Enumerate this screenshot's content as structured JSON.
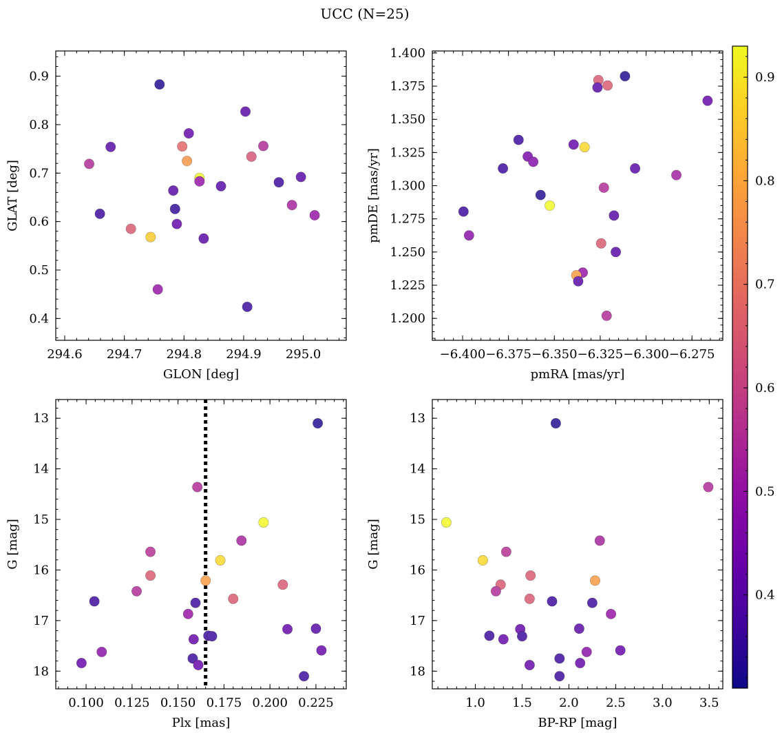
{
  "title": "UCC (N=25)",
  "colorbar": {
    "cmap": "plasma",
    "range": [
      0.31,
      0.93
    ],
    "ticks": [
      "0.4",
      "0.5",
      "0.6",
      "0.7",
      "0.8",
      "0.9"
    ],
    "tick_values": [
      0.4,
      0.5,
      0.6,
      0.7,
      0.8,
      0.9
    ]
  },
  "chart_data": [
    {
      "type": "scatter",
      "xlabel": "GLON [deg]",
      "ylabel": "GLAT [deg]",
      "xlim": [
        294.585,
        295.072
      ],
      "ylim": [
        0.355,
        0.952
      ],
      "invert_y": false,
      "xticks": [
        294.6,
        294.7,
        294.8,
        294.9,
        295.0
      ],
      "xticklabels": [
        "294.6",
        "294.7",
        "294.8",
        "294.9",
        "295.0"
      ],
      "yticks": [
        0.4,
        0.5,
        0.6,
        0.7,
        0.8,
        0.9
      ],
      "yticklabels": [
        "0.4",
        "0.5",
        "0.6",
        "0.7",
        "0.8",
        "0.9"
      ],
      "points": [
        {
          "x": 294.759,
          "y": 0.883,
          "c": 0.33
        },
        {
          "x": 294.903,
          "y": 0.827,
          "c": 0.4
        },
        {
          "x": 294.808,
          "y": 0.782,
          "c": 0.42
        },
        {
          "x": 294.677,
          "y": 0.754,
          "c": 0.4
        },
        {
          "x": 294.641,
          "y": 0.719,
          "c": 0.55
        },
        {
          "x": 294.797,
          "y": 0.755,
          "c": 0.68
        },
        {
          "x": 294.805,
          "y": 0.725,
          "c": 0.77
        },
        {
          "x": 294.933,
          "y": 0.756,
          "c": 0.55
        },
        {
          "x": 294.913,
          "y": 0.734,
          "c": 0.64
        },
        {
          "x": 294.826,
          "y": 0.69,
          "c": 0.93
        },
        {
          "x": 294.826,
          "y": 0.683,
          "c": 0.5
        },
        {
          "x": 294.862,
          "y": 0.673,
          "c": 0.4
        },
        {
          "x": 294.959,
          "y": 0.681,
          "c": 0.36
        },
        {
          "x": 294.996,
          "y": 0.692,
          "c": 0.4
        },
        {
          "x": 294.782,
          "y": 0.664,
          "c": 0.4
        },
        {
          "x": 294.785,
          "y": 0.626,
          "c": 0.35
        },
        {
          "x": 294.659,
          "y": 0.616,
          "c": 0.36
        },
        {
          "x": 294.981,
          "y": 0.634,
          "c": 0.53
        },
        {
          "x": 295.019,
          "y": 0.613,
          "c": 0.5
        },
        {
          "x": 294.788,
          "y": 0.595,
          "c": 0.42
        },
        {
          "x": 294.711,
          "y": 0.585,
          "c": 0.65
        },
        {
          "x": 294.744,
          "y": 0.568,
          "c": 0.86
        },
        {
          "x": 294.833,
          "y": 0.565,
          "c": 0.4
        },
        {
          "x": 294.756,
          "y": 0.46,
          "c": 0.5
        },
        {
          "x": 294.906,
          "y": 0.424,
          "c": 0.36
        }
      ]
    },
    {
      "type": "scatter",
      "xlabel": "pmRA [mas/yr]",
      "ylabel": "pmDE [mas/yr]",
      "xlim": [
        -6.4165,
        -6.2582
      ],
      "ylim": [
        1.1835,
        1.4015
      ],
      "invert_y": false,
      "xticks": [
        -6.4,
        -6.375,
        -6.35,
        -6.325,
        -6.3,
        -6.275
      ],
      "xticklabels": [
        "−6.400",
        "−6.375",
        "−6.350",
        "−6.325",
        "−6.300",
        "−6.275"
      ],
      "yticks": [
        1.2,
        1.225,
        1.25,
        1.275,
        1.3,
        1.325,
        1.35,
        1.375,
        1.4
      ],
      "yticklabels": [
        "1.200",
        "1.225",
        "1.250",
        "1.275",
        "1.300",
        "1.325",
        "1.350",
        "1.375",
        "1.400"
      ],
      "points": [
        {
          "x": -6.3115,
          "y": 1.3825,
          "c": 0.33
        },
        {
          "x": -6.326,
          "y": 1.3795,
          "c": 0.65
        },
        {
          "x": -6.321,
          "y": 1.3755,
          "c": 0.65
        },
        {
          "x": -6.3265,
          "y": 1.374,
          "c": 0.4
        },
        {
          "x": -6.2665,
          "y": 1.364,
          "c": 0.42
        },
        {
          "x": -6.3695,
          "y": 1.3345,
          "c": 0.36
        },
        {
          "x": -6.3395,
          "y": 1.331,
          "c": 0.42
        },
        {
          "x": -6.3335,
          "y": 1.329,
          "c": 0.88
        },
        {
          "x": -6.3645,
          "y": 1.322,
          "c": 0.45
        },
        {
          "x": -6.3615,
          "y": 1.318,
          "c": 0.47
        },
        {
          "x": -6.378,
          "y": 1.313,
          "c": 0.36
        },
        {
          "x": -6.306,
          "y": 1.313,
          "c": 0.4
        },
        {
          "x": -6.2835,
          "y": 1.308,
          "c": 0.52
        },
        {
          "x": -6.323,
          "y": 1.2985,
          "c": 0.55
        },
        {
          "x": -6.3575,
          "y": 1.293,
          "c": 0.33
        },
        {
          "x": -6.3525,
          "y": 1.285,
          "c": 0.93
        },
        {
          "x": -6.3995,
          "y": 1.2805,
          "c": 0.36
        },
        {
          "x": -6.3175,
          "y": 1.2775,
          "c": 0.4
        },
        {
          "x": -6.3965,
          "y": 1.2625,
          "c": 0.48
        },
        {
          "x": -6.3245,
          "y": 1.2565,
          "c": 0.65
        },
        {
          "x": -6.3165,
          "y": 1.25,
          "c": 0.4
        },
        {
          "x": -6.3345,
          "y": 1.2345,
          "c": 0.5
        },
        {
          "x": -6.338,
          "y": 1.2325,
          "c": 0.78
        },
        {
          "x": -6.337,
          "y": 1.228,
          "c": 0.4
        },
        {
          "x": -6.3215,
          "y": 1.202,
          "c": 0.55
        }
      ]
    },
    {
      "type": "scatter",
      "xlabel": "Plx [mas]",
      "ylabel": "G [mag]",
      "xlim": [
        0.0835,
        0.2415
      ],
      "ylim": [
        12.63,
        18.35
      ],
      "invert_y": true,
      "vline": 0.165,
      "xticks": [
        0.1,
        0.125,
        0.15,
        0.175,
        0.2,
        0.225
      ],
      "xticklabels": [
        "0.100",
        "0.125",
        "0.150",
        "0.175",
        "0.200",
        "0.225"
      ],
      "yticks": [
        13,
        14,
        15,
        16,
        17,
        18
      ],
      "yticklabels": [
        "13",
        "14",
        "15",
        "16",
        "17",
        "18"
      ],
      "points": [
        {
          "x": 0.226,
          "y": 13.1,
          "c": 0.33
        },
        {
          "x": 0.1605,
          "y": 14.36,
          "c": 0.55
        },
        {
          "x": 0.1965,
          "y": 15.06,
          "c": 0.93
        },
        {
          "x": 0.1845,
          "y": 15.42,
          "c": 0.53
        },
        {
          "x": 0.135,
          "y": 15.64,
          "c": 0.56
        },
        {
          "x": 0.173,
          "y": 15.81,
          "c": 0.88
        },
        {
          "x": 0.135,
          "y": 16.11,
          "c": 0.65
        },
        {
          "x": 0.165,
          "y": 16.21,
          "c": 0.78
        },
        {
          "x": 0.207,
          "y": 16.29,
          "c": 0.65
        },
        {
          "x": 0.1275,
          "y": 16.42,
          "c": 0.55
        },
        {
          "x": 0.18,
          "y": 16.57,
          "c": 0.65
        },
        {
          "x": 0.1045,
          "y": 16.62,
          "c": 0.36
        },
        {
          "x": 0.1595,
          "y": 16.65,
          "c": 0.36
        },
        {
          "x": 0.1555,
          "y": 16.87,
          "c": 0.5
        },
        {
          "x": 0.2095,
          "y": 17.17,
          "c": 0.42
        },
        {
          "x": 0.225,
          "y": 17.16,
          "c": 0.4
        },
        {
          "x": 0.1665,
          "y": 17.3,
          "c": 0.36
        },
        {
          "x": 0.1685,
          "y": 17.31,
          "c": 0.36
        },
        {
          "x": 0.1585,
          "y": 17.37,
          "c": 0.42
        },
        {
          "x": 0.228,
          "y": 17.59,
          "c": 0.42
        },
        {
          "x": 0.1085,
          "y": 17.62,
          "c": 0.48
        },
        {
          "x": 0.158,
          "y": 17.75,
          "c": 0.36
        },
        {
          "x": 0.0975,
          "y": 17.84,
          "c": 0.42
        },
        {
          "x": 0.161,
          "y": 17.88,
          "c": 0.42
        },
        {
          "x": 0.2185,
          "y": 18.1,
          "c": 0.36
        }
      ]
    },
    {
      "type": "scatter",
      "xlabel": "BP-RP [mag]",
      "ylabel": "G [mag]",
      "xlim": [
        0.54,
        3.645
      ],
      "ylim": [
        12.63,
        18.35
      ],
      "invert_y": true,
      "xticks": [
        1.0,
        1.5,
        2.0,
        2.5,
        3.0,
        3.5
      ],
      "xticklabels": [
        "1.0",
        "1.5",
        "2.0",
        "2.5",
        "3.0",
        "3.5"
      ],
      "yticks": [
        13,
        14,
        15,
        16,
        17,
        18
      ],
      "yticklabels": [
        "13",
        "14",
        "15",
        "16",
        "17",
        "18"
      ],
      "points": [
        {
          "x": 1.86,
          "y": 13.1,
          "c": 0.33
        },
        {
          "x": 3.49,
          "y": 14.36,
          "c": 0.55
        },
        {
          "x": 0.69,
          "y": 15.06,
          "c": 0.93
        },
        {
          "x": 2.33,
          "y": 15.42,
          "c": 0.53
        },
        {
          "x": 1.33,
          "y": 15.64,
          "c": 0.56
        },
        {
          "x": 1.08,
          "y": 15.81,
          "c": 0.88
        },
        {
          "x": 1.59,
          "y": 16.11,
          "c": 0.65
        },
        {
          "x": 2.28,
          "y": 16.21,
          "c": 0.78
        },
        {
          "x": 1.27,
          "y": 16.29,
          "c": 0.65
        },
        {
          "x": 1.22,
          "y": 16.42,
          "c": 0.55
        },
        {
          "x": 1.58,
          "y": 16.57,
          "c": 0.65
        },
        {
          "x": 1.82,
          "y": 16.62,
          "c": 0.36
        },
        {
          "x": 2.25,
          "y": 16.65,
          "c": 0.36
        },
        {
          "x": 2.45,
          "y": 16.87,
          "c": 0.5
        },
        {
          "x": 1.48,
          "y": 17.17,
          "c": 0.42
        },
        {
          "x": 2.11,
          "y": 17.16,
          "c": 0.4
        },
        {
          "x": 1.15,
          "y": 17.3,
          "c": 0.36
        },
        {
          "x": 1.5,
          "y": 17.31,
          "c": 0.36
        },
        {
          "x": 1.3,
          "y": 17.37,
          "c": 0.42
        },
        {
          "x": 2.55,
          "y": 17.59,
          "c": 0.42
        },
        {
          "x": 2.19,
          "y": 17.62,
          "c": 0.48
        },
        {
          "x": 1.9,
          "y": 17.75,
          "c": 0.36
        },
        {
          "x": 2.12,
          "y": 17.84,
          "c": 0.42
        },
        {
          "x": 1.58,
          "y": 17.88,
          "c": 0.42
        },
        {
          "x": 1.9,
          "y": 18.1,
          "c": 0.36
        }
      ]
    }
  ]
}
